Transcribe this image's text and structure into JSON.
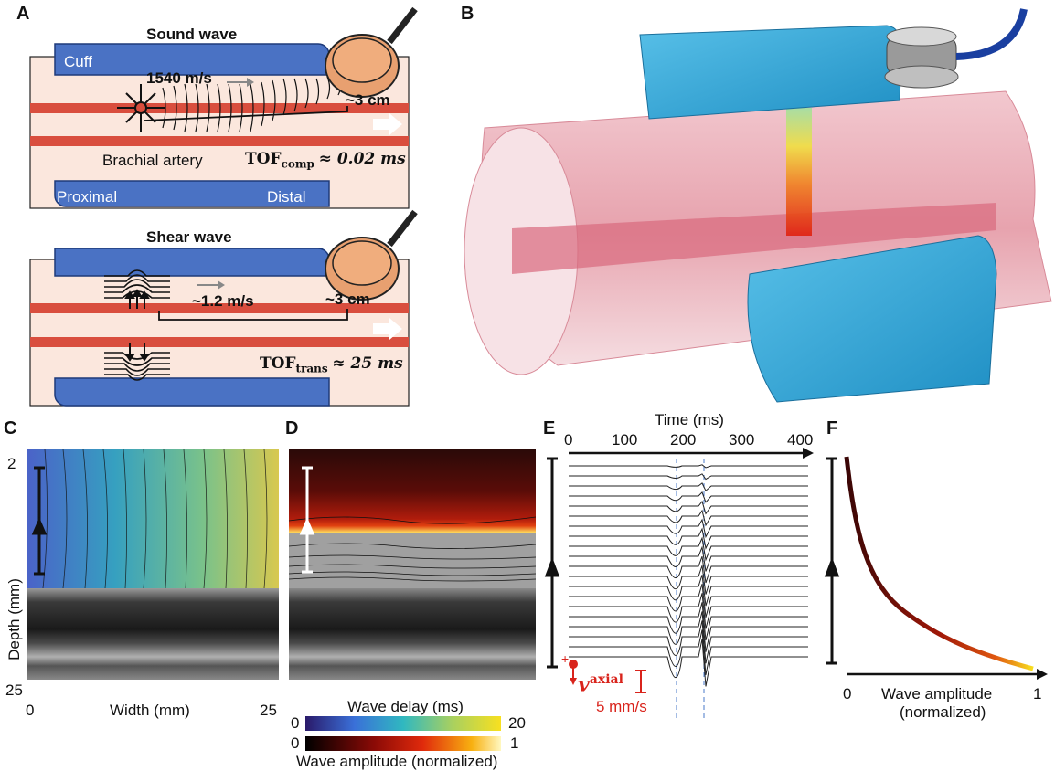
{
  "panels": {
    "a": {
      "label": "A",
      "sound": {
        "title": "Sound wave",
        "cuff": "Cuff",
        "speed": "1540 m/s",
        "distance": "~3 cm",
        "artery": "Brachial artery",
        "tof_main": "TOF",
        "tof_sub": "comp",
        "tof_value": "≈ 0.02 ms",
        "proximal": "Proximal",
        "distal": "Distal"
      },
      "shear": {
        "title": "Shear wave",
        "speed": "~1.2 m/s",
        "distance": "~3 cm",
        "tof_main": "TOF",
        "tof_sub": "trans",
        "tof_value": "≈ 25 ms"
      }
    },
    "b": {
      "label": "B"
    },
    "c": {
      "label": "C",
      "y_top": "2",
      "y_bottom": "25",
      "ylabel": "Depth (mm)",
      "x_left": "0",
      "x_right": "25",
      "xlabel": "Width (mm)"
    },
    "d": {
      "label": "D",
      "cb1_label": "Wave delay (ms)",
      "cb1_min": "0",
      "cb1_max": "20",
      "cb2_min": "0",
      "cb2_max": "1",
      "cb2_label": "Wave amplitude (normalized)"
    },
    "e": {
      "label": "E",
      "xlabel": "Time (ms)",
      "ticks": [
        "0",
        "100",
        "200",
        "300",
        "400"
      ],
      "vaxial": "v",
      "vaxial_sup": "axial",
      "scale": "5 mm/s"
    },
    "f": {
      "label": "F",
      "x_min": "0",
      "x_max": "1",
      "xlabel_line1": "Wave amplitude",
      "xlabel_line2": "(normalized)"
    }
  },
  "colors": {
    "cuff": "#4a72c4",
    "artery": "#d94e3e",
    "tissue": "#fbe7dd",
    "stethoscope": "#e8a070",
    "annotation_red": "#d9241c",
    "marker_blue": "#4a78c8"
  }
}
